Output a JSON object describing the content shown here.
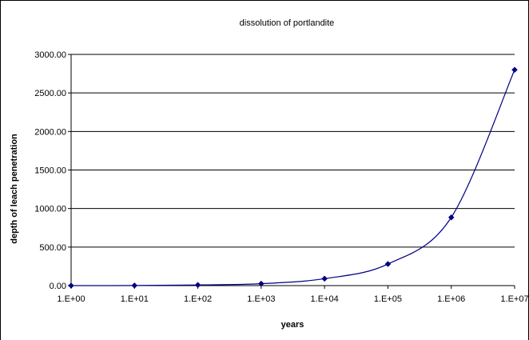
{
  "chart_data": {
    "type": "line",
    "title": "dissolution of portlandite",
    "xlabel": "years",
    "ylabel": "depth of leach penetration",
    "x_scale": "log",
    "x": [
      1,
      10,
      100,
      1000,
      10000,
      100000,
      1000000,
      10000000
    ],
    "x_tick_labels": [
      "1.E+00",
      "1.E+01",
      "1.E+02",
      "1.E+03",
      "1.E+04",
      "1.E+05",
      "1.E+06",
      "1.E+07"
    ],
    "y_tick_labels": [
      "0.00",
      "500.00",
      "1000.00",
      "1500.00",
      "2000.00",
      "2500.00",
      "3000.00"
    ],
    "ylim": [
      0,
      3000
    ],
    "grid": "horizontal",
    "legend": "none",
    "series": [
      {
        "values": [
          0,
          1,
          8,
          25,
          90,
          280,
          885,
          2800
        ],
        "color": "#000080"
      }
    ]
  }
}
